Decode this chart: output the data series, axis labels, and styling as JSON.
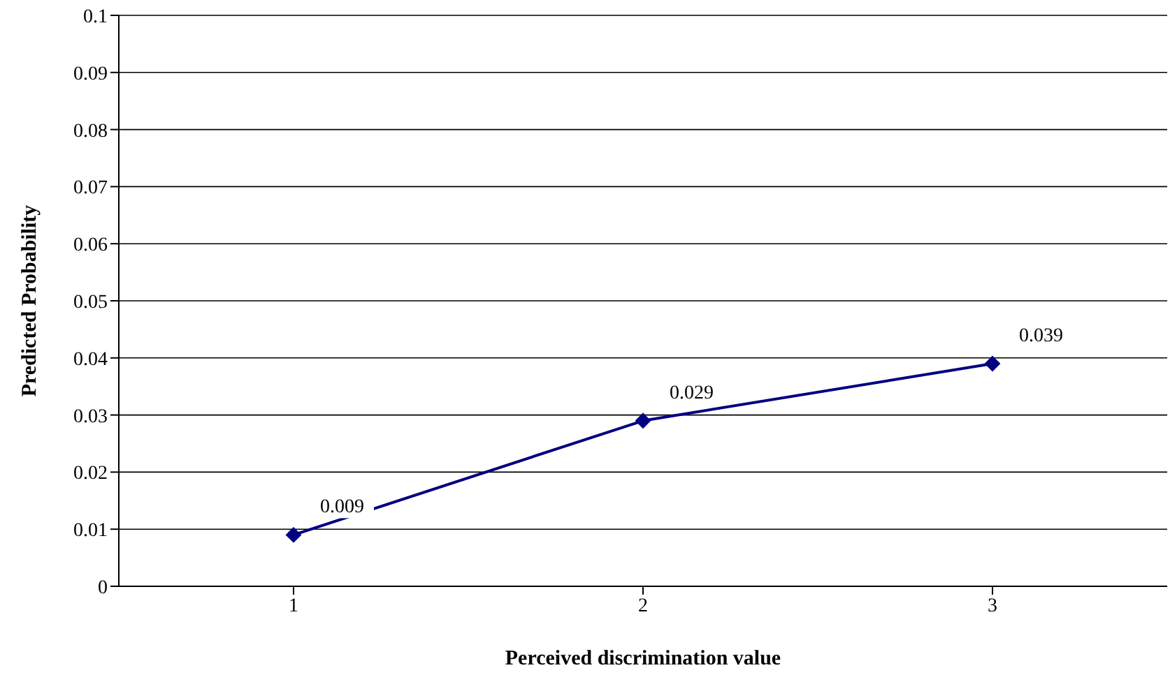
{
  "chart_data": {
    "type": "line",
    "xlabel": "Perceived discrimination value",
    "ylabel": "Predicted Probability",
    "categories": [
      "1",
      "2",
      "3"
    ],
    "series": [
      {
        "color": "#000080",
        "values": [
          0.009,
          0.029,
          0.039
        ]
      }
    ],
    "ylim": [
      0,
      0.1
    ],
    "yticks": [
      0,
      0.01,
      0.02,
      0.03,
      0.04,
      0.05,
      0.06,
      0.07,
      0.08,
      0.09,
      0.1
    ],
    "grid": "y",
    "legend": false,
    "marker": "diamond",
    "line_style": "solid",
    "data_labels": true
  }
}
